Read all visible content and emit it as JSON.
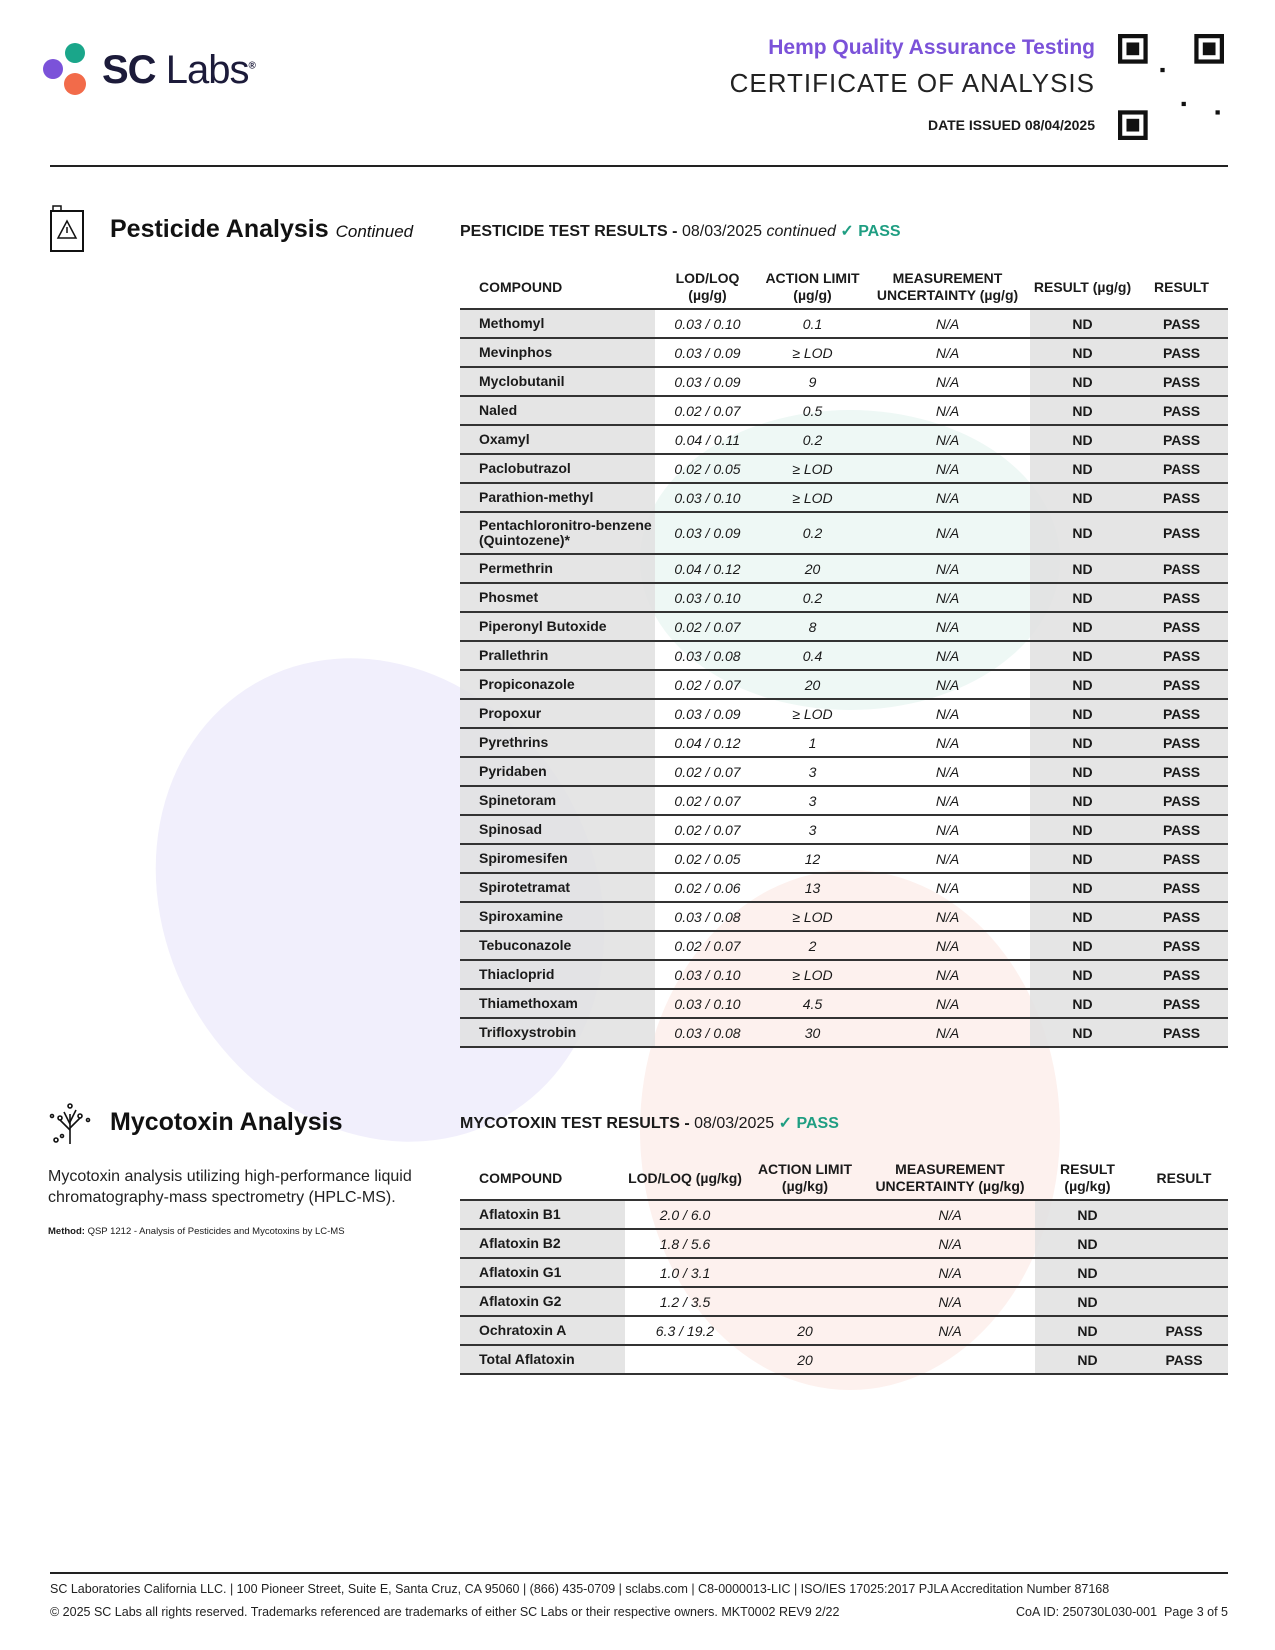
{
  "header": {
    "logo_sc": "SC",
    "logo_labs": "Labs",
    "logo_reg": "®",
    "subtitle": "Hemp Quality Assurance Testing",
    "title": "CERTIFICATE OF ANALYSIS",
    "date_issued": "DATE ISSUED 08/04/2025"
  },
  "colors": {
    "purple": "#7b52d9",
    "green": "#1f9e82",
    "orange": "#f26b4a",
    "teal": "#1aa68a"
  },
  "pesticide": {
    "section_title": "Pesticide Analysis",
    "section_suffix": "Continued",
    "table_title": "PESTICIDE TEST RESULTS -",
    "date": "08/03/2025",
    "continued": "continued",
    "status": "PASS",
    "columns": [
      "COMPOUND",
      "LOD/LOQ (µg/g)",
      "ACTION LIMIT (µg/g)",
      "MEASUREMENT UNCERTAINTY (µg/g)",
      "RESULT (µg/g)",
      "RESULT"
    ],
    "rows": [
      [
        "Methomyl",
        "0.03 / 0.10",
        "0.1",
        "N/A",
        "ND",
        "PASS"
      ],
      [
        "Mevinphos",
        "0.03 / 0.09",
        "≥ LOD",
        "N/A",
        "ND",
        "PASS"
      ],
      [
        "Myclobutanil",
        "0.03 / 0.09",
        "9",
        "N/A",
        "ND",
        "PASS"
      ],
      [
        "Naled",
        "0.02 / 0.07",
        "0.5",
        "N/A",
        "ND",
        "PASS"
      ],
      [
        "Oxamyl",
        "0.04 / 0.11",
        "0.2",
        "N/A",
        "ND",
        "PASS"
      ],
      [
        "Paclobutrazol",
        "0.02 / 0.05",
        "≥ LOD",
        "N/A",
        "ND",
        "PASS"
      ],
      [
        "Parathion-methyl",
        "0.03 / 0.10",
        "≥ LOD",
        "N/A",
        "ND",
        "PASS"
      ],
      [
        "Pentachloronitro-benzene (Quintozene)*",
        "0.03 / 0.09",
        "0.2",
        "N/A",
        "ND",
        "PASS"
      ],
      [
        "Permethrin",
        "0.04 / 0.12",
        "20",
        "N/A",
        "ND",
        "PASS"
      ],
      [
        "Phosmet",
        "0.03 / 0.10",
        "0.2",
        "N/A",
        "ND",
        "PASS"
      ],
      [
        "Piperonyl Butoxide",
        "0.02 / 0.07",
        "8",
        "N/A",
        "ND",
        "PASS"
      ],
      [
        "Prallethrin",
        "0.03 / 0.08",
        "0.4",
        "N/A",
        "ND",
        "PASS"
      ],
      [
        "Propiconazole",
        "0.02 / 0.07",
        "20",
        "N/A",
        "ND",
        "PASS"
      ],
      [
        "Propoxur",
        "0.03 / 0.09",
        "≥ LOD",
        "N/A",
        "ND",
        "PASS"
      ],
      [
        "Pyrethrins",
        "0.04 / 0.12",
        "1",
        "N/A",
        "ND",
        "PASS"
      ],
      [
        "Pyridaben",
        "0.02 / 0.07",
        "3",
        "N/A",
        "ND",
        "PASS"
      ],
      [
        "Spinetoram",
        "0.02 / 0.07",
        "3",
        "N/A",
        "ND",
        "PASS"
      ],
      [
        "Spinosad",
        "0.02 / 0.07",
        "3",
        "N/A",
        "ND",
        "PASS"
      ],
      [
        "Spiromesifen",
        "0.02 / 0.05",
        "12",
        "N/A",
        "ND",
        "PASS"
      ],
      [
        "Spirotetramat",
        "0.02 / 0.06",
        "13",
        "N/A",
        "ND",
        "PASS"
      ],
      [
        "Spiroxamine",
        "0.03 / 0.08",
        "≥ LOD",
        "N/A",
        "ND",
        "PASS"
      ],
      [
        "Tebuconazole",
        "0.02 / 0.07",
        "2",
        "N/A",
        "ND",
        "PASS"
      ],
      [
        "Thiacloprid",
        "0.03 / 0.10",
        "≥ LOD",
        "N/A",
        "ND",
        "PASS"
      ],
      [
        "Thiamethoxam",
        "0.03 / 0.10",
        "4.5",
        "N/A",
        "ND",
        "PASS"
      ],
      [
        "Trifloxystrobin",
        "0.03 / 0.08",
        "30",
        "N/A",
        "ND",
        "PASS"
      ]
    ]
  },
  "mycotoxin": {
    "section_title": "Mycotoxin Analysis",
    "description": "Mycotoxin analysis utilizing high-performance liquid chromatography-mass spectrometry (HPLC-MS).",
    "method_label": "Method:",
    "method_text": "QSP 1212 - Analysis of Pesticides and Mycotoxins by LC-MS",
    "table_title": "MYCOTOXIN TEST RESULTS -",
    "date": "08/03/2025",
    "status": "PASS",
    "columns": [
      "COMPOUND",
      "LOD/LOQ (µg/kg)",
      "ACTION LIMIT (µg/kg)",
      "MEASUREMENT UNCERTAINTY (µg/kg)",
      "RESULT (µg/kg)",
      "RESULT"
    ],
    "rows": [
      [
        "Aflatoxin B1",
        "2.0 / 6.0",
        "",
        "N/A",
        "ND",
        ""
      ],
      [
        "Aflatoxin B2",
        "1.8 / 5.6",
        "",
        "N/A",
        "ND",
        ""
      ],
      [
        "Aflatoxin G1",
        "1.0 / 3.1",
        "",
        "N/A",
        "ND",
        ""
      ],
      [
        "Aflatoxin G2",
        "1.2 / 3.5",
        "",
        "N/A",
        "ND",
        ""
      ],
      [
        "Ochratoxin A",
        "6.3 / 19.2",
        "20",
        "N/A",
        "ND",
        "PASS"
      ],
      [
        "Total Aflatoxin",
        "",
        "20",
        "",
        "ND",
        "PASS"
      ]
    ]
  },
  "footer": {
    "line1": "SC Laboratories California LLC. | 100 Pioneer Street, Suite E, Santa Cruz, CA 95060 | (866) 435-0709 | sclabs.com | C8-0000013-LIC | ISO/IES 17025:2017 PJLA Accreditation Number 87168",
    "line2": "© 2025 SC Labs all rights reserved. Trademarks referenced are trademarks of either SC Labs or their respective owners. MKT0002 REV9 2/22",
    "coa_id": "CoA ID: 250730L030-001",
    "page": "Page 3 of 5"
  }
}
